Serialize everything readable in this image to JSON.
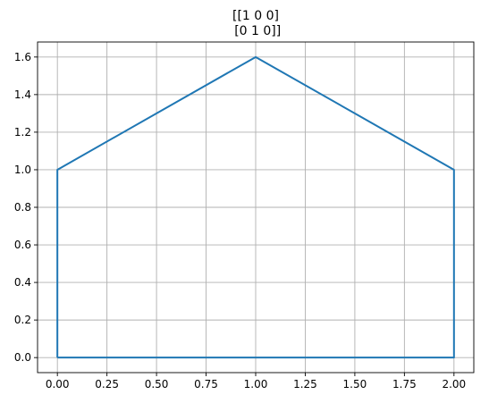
{
  "chart_data": {
    "type": "line",
    "title_lines": [
      "[[1 0 0]",
      " [0 1 0]]"
    ],
    "xlabel": "",
    "ylabel": "",
    "xlim": [
      -0.1,
      2.1
    ],
    "ylim": [
      -0.08,
      1.68
    ],
    "grid": true,
    "x_ticks": [
      0.0,
      0.25,
      0.5,
      0.75,
      1.0,
      1.25,
      1.5,
      1.75,
      2.0
    ],
    "x_tick_labels": [
      "0.00",
      "0.25",
      "0.50",
      "0.75",
      "1.00",
      "1.25",
      "1.50",
      "1.75",
      "2.00"
    ],
    "y_ticks": [
      0.0,
      0.2,
      0.4,
      0.6,
      0.8,
      1.0,
      1.2,
      1.4,
      1.6
    ],
    "y_tick_labels": [
      "0.0",
      "0.2",
      "0.4",
      "0.6",
      "0.8",
      "1.0",
      "1.2",
      "1.4",
      "1.6"
    ],
    "series": [
      {
        "x": [
          0,
          2,
          2,
          1,
          0,
          0
        ],
        "y": [
          0,
          0,
          1,
          1.6,
          1,
          0
        ],
        "color": "#1f77b4"
      }
    ]
  },
  "colors": {
    "grid": "#b0b0b0",
    "axes": "#000000"
  }
}
